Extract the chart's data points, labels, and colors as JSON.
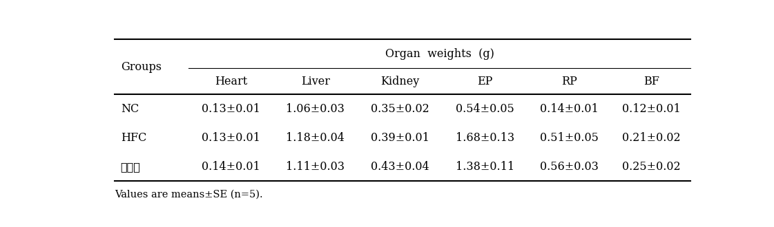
{
  "title": "Organ  weights  (g)",
  "col_header": [
    "Heart",
    "Liver",
    "Kidney",
    "EP",
    "RP",
    "BF"
  ],
  "rows": [
    [
      "NC",
      "0.13±0.01",
      "1.06±0.03",
      "0.35±0.02",
      "0.54±0.05",
      "0.14±0.01",
      "0.12±0.01"
    ],
    [
      "HFC",
      "0.13±0.01",
      "1.18±0.04",
      "0.39±0.01",
      "1.68±0.13",
      "0.51±0.05",
      "0.21±0.02"
    ],
    [
      "돌나물",
      "0.14±0.01",
      "1.11±0.03",
      "0.43±0.04",
      "1.38±0.11",
      "0.56±0.03",
      "0.25±0.02"
    ]
  ],
  "footnote": "Values are means±SE (n=5).",
  "font_size": 11.5
}
